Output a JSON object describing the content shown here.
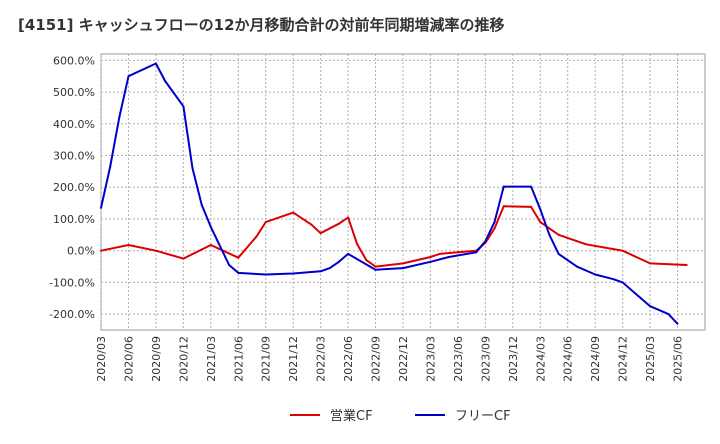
{
  "chart_data": {
    "type": "line",
    "title": "[4151]  キャッシュフローの12か月移動合計の対前年同期増減率の推移",
    "xlabel": "",
    "ylabel": "",
    "ylim": [
      -250,
      620
    ],
    "y_ticks": [
      600,
      500,
      400,
      300,
      200,
      100,
      0,
      -100,
      -200
    ],
    "y_tick_labels": [
      "600.0%",
      "500.0%",
      "400.0%",
      "300.0%",
      "200.0%",
      "100.0%",
      "0.0%",
      "-100.0%",
      "-200.0%"
    ],
    "x_tick_labels": [
      "2020/03",
      "2020/06",
      "2020/09",
      "2020/12",
      "2021/03",
      "2021/06",
      "2021/09",
      "2021/12",
      "2022/03",
      "2022/06",
      "2022/09",
      "2022/12",
      "2023/03",
      "2023/06",
      "2023/09",
      "2023/12",
      "2024/03",
      "2024/06",
      "2024/09",
      "2024/12",
      "2025/03",
      "2025/06"
    ],
    "grid": true,
    "legend_position": "bottom",
    "series": [
      {
        "name": "営業CF",
        "color": "#dd0000",
        "points": [
          [
            0,
            0
          ],
          [
            3,
            18
          ],
          [
            6,
            0
          ],
          [
            9,
            -25
          ],
          [
            12,
            18
          ],
          [
            15,
            -22
          ],
          [
            17,
            45
          ],
          [
            18,
            90
          ],
          [
            21,
            120
          ],
          [
            23,
            82
          ],
          [
            24,
            55
          ],
          [
            26,
            85
          ],
          [
            27,
            105
          ],
          [
            28,
            20
          ],
          [
            29,
            -30
          ],
          [
            30,
            -50
          ],
          [
            33,
            -40
          ],
          [
            36,
            -20
          ],
          [
            37,
            -10
          ],
          [
            39,
            -5
          ],
          [
            41,
            0
          ],
          [
            42,
            25
          ],
          [
            43,
            70
          ],
          [
            44,
            140
          ],
          [
            47,
            138
          ],
          [
            48,
            90
          ],
          [
            50,
            50
          ],
          [
            53,
            20
          ],
          [
            56,
            5
          ],
          [
            57,
            0
          ],
          [
            60,
            -40
          ],
          [
            64,
            -45
          ]
        ]
      },
      {
        "name": "フリーCF",
        "color": "#0000cc",
        "points": [
          [
            0,
            135
          ],
          [
            1,
            265
          ],
          [
            2,
            420
          ],
          [
            3,
            550
          ],
          [
            6,
            590
          ],
          [
            7,
            535
          ],
          [
            9,
            455
          ],
          [
            10,
            260
          ],
          [
            11,
            145
          ],
          [
            12,
            75
          ],
          [
            14,
            -45
          ],
          [
            15,
            -70
          ],
          [
            18,
            -75
          ],
          [
            21,
            -72
          ],
          [
            24,
            -65
          ],
          [
            25,
            -55
          ],
          [
            26,
            -35
          ],
          [
            27,
            -10
          ],
          [
            30,
            -60
          ],
          [
            33,
            -55
          ],
          [
            36,
            -35
          ],
          [
            38,
            -20
          ],
          [
            41,
            -5
          ],
          [
            42,
            30
          ],
          [
            43,
            90
          ],
          [
            44,
            202
          ],
          [
            47,
            202
          ],
          [
            48,
            130
          ],
          [
            49,
            50
          ],
          [
            50,
            -10
          ],
          [
            52,
            -50
          ],
          [
            54,
            -75
          ],
          [
            56,
            -90
          ],
          [
            57,
            -100
          ],
          [
            59,
            -150
          ],
          [
            60,
            -175
          ],
          [
            62,
            -200
          ],
          [
            63,
            -230
          ]
        ]
      }
    ]
  }
}
